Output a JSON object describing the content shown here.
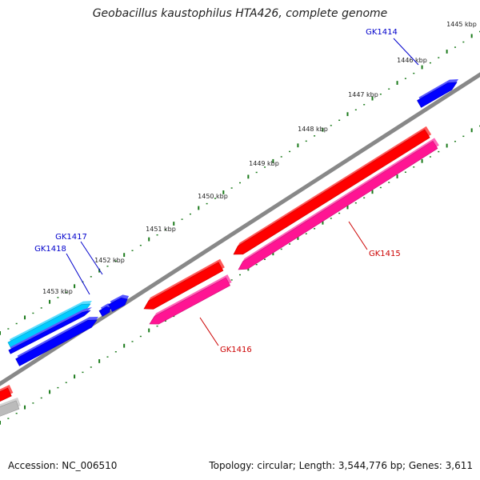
{
  "title": "Geobacillus kaustophilus HTA426, complete genome",
  "footer": {
    "accession": "Accession: NC_006510",
    "summary": "Topology: circular; Length: 3,544,776 bp; Genes: 3,611"
  },
  "colors": {
    "backbone": "#888888",
    "tick": "#1a7a1a",
    "forward_gene": "#0000ff",
    "forward_gene_alt": "#00ccff",
    "reverse_gene": "#ff0000",
    "reverse_gene_alt": "#ff1493",
    "other": "#bbbbbb",
    "label_forward": "#0000cc",
    "label_reverse": "#cc0000"
  },
  "tick_labels": [
    "1445 kbp",
    "1446 kbp",
    "1447 kbp",
    "1448 kbp",
    "1449 kbp",
    "1450 kbp",
    "1451 kbp",
    "1452 kbp",
    "1453 kbp"
  ],
  "gene_labels": [
    {
      "text": "GK1414",
      "strand": "forward"
    },
    {
      "text": "GK1415",
      "strand": "reverse"
    },
    {
      "text": "GK1416",
      "strand": "reverse"
    },
    {
      "text": "GK1417",
      "strand": "forward"
    },
    {
      "text": "GK1418",
      "strand": "forward"
    }
  ]
}
